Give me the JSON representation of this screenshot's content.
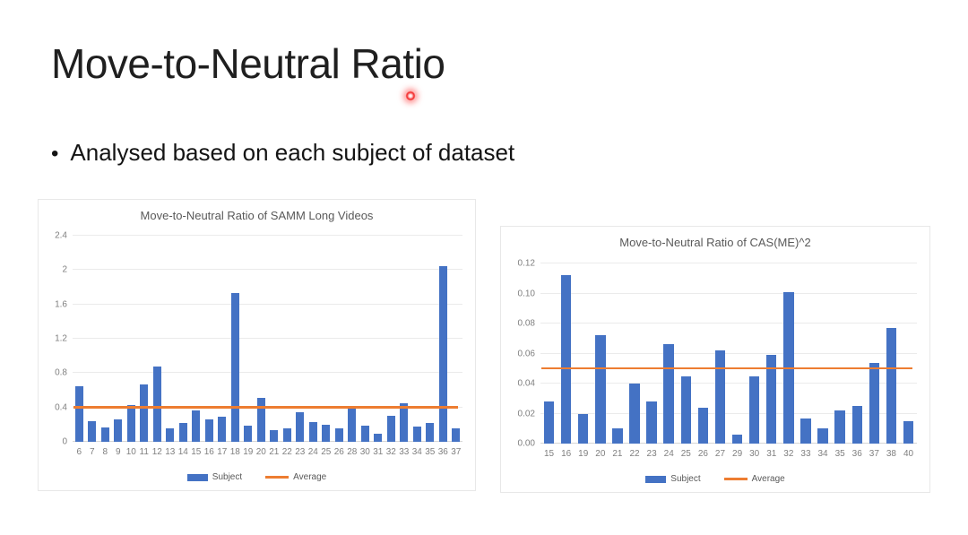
{
  "slide": {
    "title": "Move-to-Neutral Ratio",
    "bullet_glyph": "•",
    "bullet": "Analysed based on each subject of dataset"
  },
  "colors": {
    "bar": "#4472c4",
    "average": "#ed7d31",
    "laser_dot": "#f42222"
  },
  "chart_data": [
    {
      "type": "bar",
      "title": "Move-to-Neutral Ratio of SAMM Long Videos",
      "categories": [
        "6",
        "7",
        "8",
        "9",
        "10",
        "11",
        "12",
        "13",
        "14",
        "15",
        "16",
        "17",
        "18",
        "19",
        "20",
        "21",
        "22",
        "23",
        "24",
        "25",
        "26",
        "28",
        "30",
        "31",
        "32",
        "33",
        "34",
        "35",
        "36",
        "37"
      ],
      "series": [
        {
          "name": "Subject",
          "values": [
            0.65,
            0.24,
            0.17,
            0.26,
            0.43,
            0.67,
            0.88,
            0.16,
            0.22,
            0.37,
            0.26,
            0.29,
            1.73,
            0.19,
            0.51,
            0.14,
            0.16,
            0.34,
            0.23,
            0.2,
            0.16,
            0.41,
            0.19,
            0.09,
            0.3,
            0.45,
            0.18,
            0.22,
            2.05,
            0.16
          ]
        }
      ],
      "average_line": {
        "name": "Average",
        "value": 0.4
      },
      "xlabel": "",
      "ylabel": "",
      "ylim": [
        0,
        2.4
      ],
      "yticks": [
        0,
        0.4,
        0.8,
        1.2,
        1.6,
        2,
        2.4
      ],
      "ytick_labels": [
        "0",
        "0.4",
        "0.8",
        "1.2",
        "1.6",
        "2",
        "2.4"
      ],
      "grid": true,
      "legend_position": "bottom"
    },
    {
      "type": "bar",
      "title": "Move-to-Neutral Ratio of CAS(ME)^2",
      "categories": [
        "15",
        "16",
        "19",
        "20",
        "21",
        "22",
        "23",
        "24",
        "25",
        "26",
        "27",
        "29",
        "30",
        "31",
        "32",
        "33",
        "34",
        "35",
        "36",
        "37",
        "38",
        "40"
      ],
      "series": [
        {
          "name": "Subject",
          "values": [
            0.028,
            0.112,
            0.02,
            0.072,
            0.01,
            0.04,
            0.028,
            0.066,
            0.045,
            0.024,
            0.062,
            0.006,
            0.045,
            0.059,
            0.101,
            0.017,
            0.01,
            0.022,
            0.025,
            0.054,
            0.077,
            0.015
          ]
        }
      ],
      "average_line": {
        "name": "Average",
        "value": 0.05
      },
      "xlabel": "",
      "ylabel": "",
      "ylim": [
        0,
        0.12
      ],
      "yticks": [
        0,
        0.02,
        0.04,
        0.06,
        0.08,
        0.1,
        0.12
      ],
      "ytick_labels": [
        "0.00",
        "0.02",
        "0.04",
        "0.06",
        "0.08",
        "0.10",
        "0.12"
      ],
      "grid": true,
      "legend_position": "bottom"
    }
  ]
}
